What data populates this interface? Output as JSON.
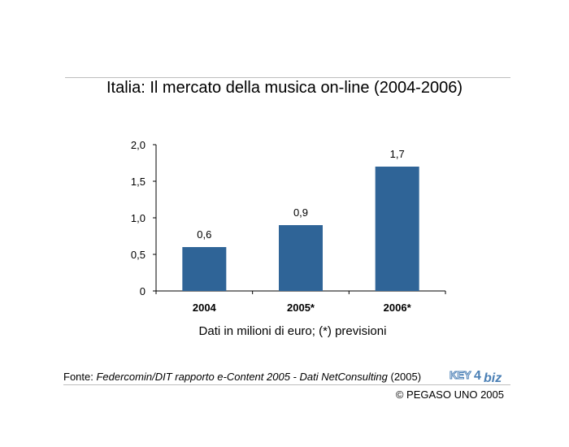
{
  "title": "Italia: Il mercato della musica on-line (2004-2006)",
  "unit_note": "Dati in milioni di euro; (*) previsioni",
  "source": {
    "prefix": "Fonte: ",
    "italic": "Federcomin/DIT rapporto e-Content 2005 - Dati NetConsulting",
    "suffix": " (2005)"
  },
  "logo": {
    "part1": "KEY",
    "part2": "4",
    "part3": "biz"
  },
  "copyright": "© PEGASO UNO 2005",
  "colors": {
    "bar": "#2f6497",
    "axis": "#000000",
    "rule": "#bdbdbd",
    "logo": "#4a7fb5"
  },
  "chart_data": {
    "type": "bar",
    "categories": [
      "2004",
      "2005*",
      "2006*"
    ],
    "values": [
      0.6,
      0.9,
      1.7
    ],
    "value_labels": [
      "0,6",
      "0,9",
      "1,7"
    ],
    "yticks": [
      0,
      0.5,
      1.0,
      1.5,
      2.0
    ],
    "ytick_labels": [
      "0",
      "0,5",
      "1,0",
      "1,5",
      "2,0"
    ],
    "ylim": [
      0,
      2.0
    ],
    "grid": false
  }
}
